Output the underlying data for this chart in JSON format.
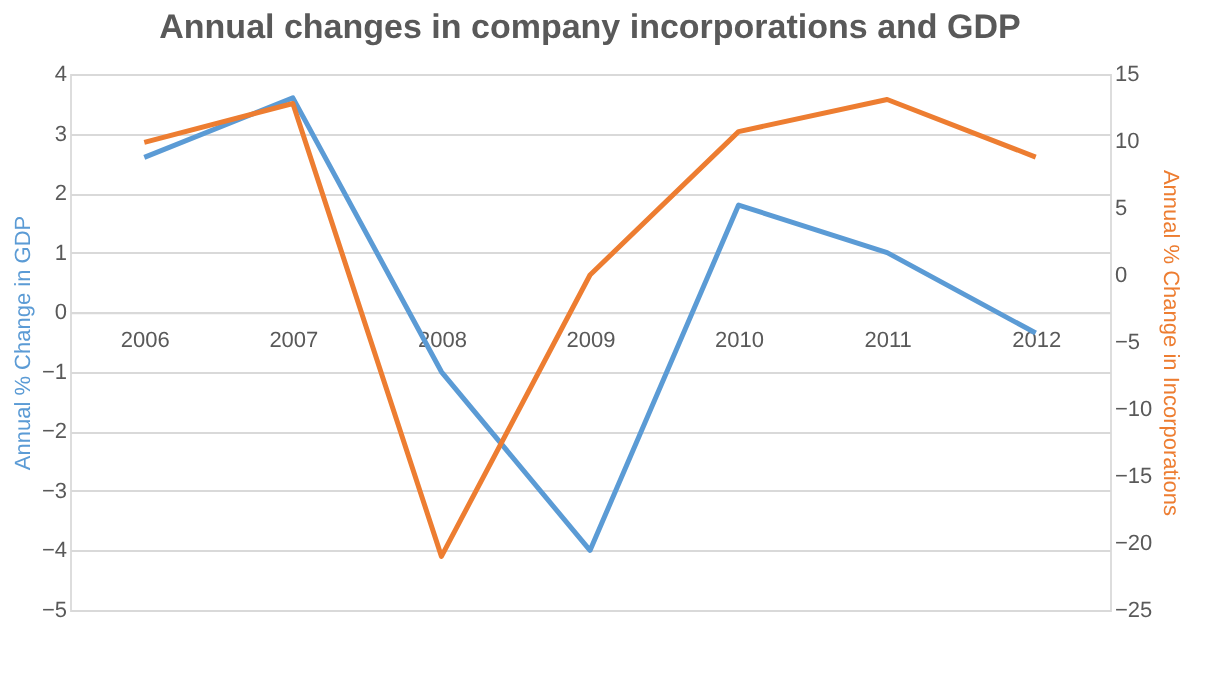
{
  "chart_data": {
    "type": "line",
    "title": "Annual changes in company incorporations and GDP",
    "ylabel": "Annual % Change in GDP",
    "y2label": "Annual % Change in Incorporations",
    "categories": [
      "2006",
      "2007",
      "2008",
      "2009",
      "2010",
      "2011",
      "2012"
    ],
    "series": [
      {
        "color": "#5b9bd5",
        "values": [
          2.6,
          3.6,
          -1.0,
          -4.0,
          1.8,
          1.0,
          -0.35
        ]
      },
      {
        "color": "#ed7d31",
        "axis": "y2",
        "values": [
          9.9,
          12.8,
          -21,
          0,
          10.7,
          13.1,
          8.8
        ]
      }
    ],
    "ylim": [
      -5,
      4
    ],
    "yticks": [
      -5,
      -4,
      -3,
      -2,
      -1,
      0,
      1,
      2,
      3,
      4
    ],
    "y2lim": [
      -25,
      15
    ],
    "y2ticks": [
      -25,
      -20,
      -15,
      -10,
      -5,
      0,
      5,
      10,
      15
    ],
    "grid": "y",
    "marker": "none",
    "line_style": "solid"
  }
}
